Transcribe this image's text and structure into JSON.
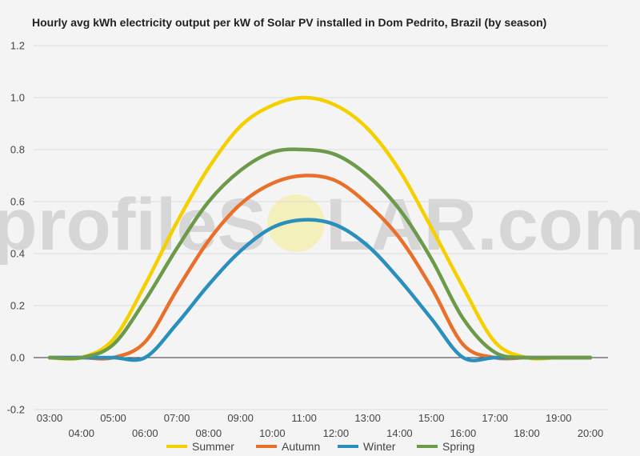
{
  "chart_data": {
    "type": "line",
    "title": "Hourly avg kWh electricity output per kW of Solar PV installed in Dom Pedrito, Brazil (by season)",
    "xlabel": "",
    "ylabel": "",
    "ylim": [
      -0.2,
      1.2
    ],
    "yticks": [
      "-0.2",
      "0.0",
      "0.2",
      "0.4",
      "0.6",
      "0.8",
      "1.0",
      "1.2"
    ],
    "x": [
      "03:00",
      "04:00",
      "05:00",
      "06:00",
      "07:00",
      "08:00",
      "09:00",
      "10:00",
      "11:00",
      "12:00",
      "13:00",
      "14:00",
      "15:00",
      "16:00",
      "17:00",
      "18:00",
      "19:00",
      "20:00"
    ],
    "grid": true,
    "legend": "bottom",
    "series": [
      {
        "name": "Summer",
        "color": "#f5d000",
        "values": [
          0.0,
          0.0,
          0.07,
          0.28,
          0.52,
          0.73,
          0.89,
          0.97,
          1.0,
          0.97,
          0.88,
          0.72,
          0.5,
          0.27,
          0.06,
          0.0,
          0.0,
          0.0
        ]
      },
      {
        "name": "Autumn",
        "color": "#e8702a",
        "values": [
          0.0,
          0.0,
          0.0,
          0.06,
          0.26,
          0.45,
          0.59,
          0.67,
          0.7,
          0.68,
          0.59,
          0.46,
          0.27,
          0.05,
          0.0,
          0.0,
          0.0,
          0.0
        ]
      },
      {
        "name": "Winter",
        "color": "#2a8fbd",
        "values": [
          0.0,
          0.0,
          0.0,
          0.0,
          0.13,
          0.28,
          0.41,
          0.5,
          0.53,
          0.51,
          0.43,
          0.3,
          0.15,
          0.0,
          0.0,
          0.0,
          0.0,
          0.0
        ]
      },
      {
        "name": "Spring",
        "color": "#6a9a4a",
        "values": [
          0.0,
          0.0,
          0.05,
          0.22,
          0.42,
          0.6,
          0.72,
          0.79,
          0.8,
          0.78,
          0.7,
          0.57,
          0.38,
          0.15,
          0.02,
          0.0,
          0.0,
          0.0
        ]
      }
    ]
  },
  "watermark": {
    "left": "profileS",
    "right": "LAR.com"
  }
}
